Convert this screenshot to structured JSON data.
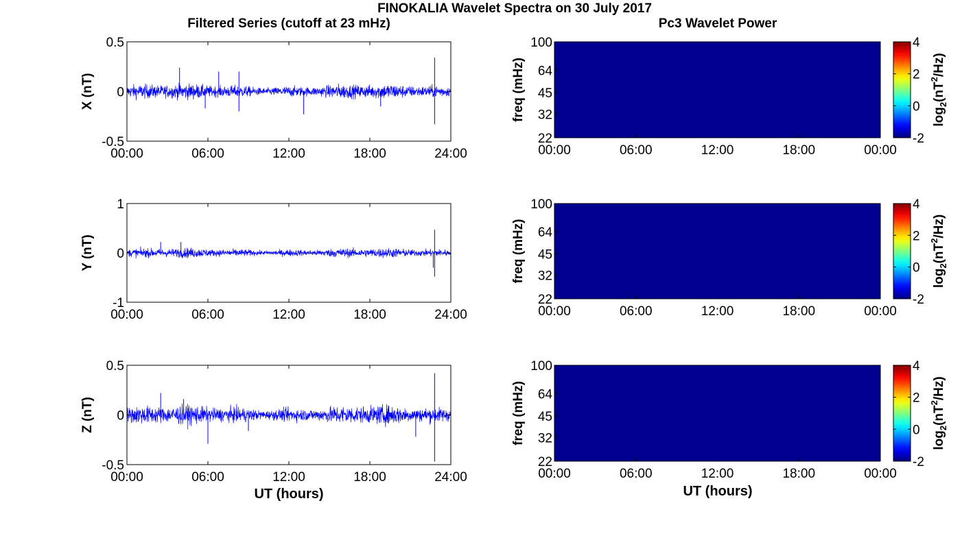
{
  "figure": {
    "title": "FINOKALIA Wavelet Spectra on 30 July 2017",
    "left_title": "Filtered Series (cutoff at 23 mHz)",
    "right_title": "Pc3 Wavelet Power",
    "x_label": "UT (hours)"
  },
  "chart_data": [
    {
      "type": "line",
      "panel": "X",
      "ylabel": "X (nT)",
      "ylim": [
        -0.5,
        0.5
      ],
      "yticks": [
        "0.5",
        "0",
        "-0.5"
      ],
      "xlim": [
        0,
        24
      ],
      "xticks": [
        "00:00",
        "06:00",
        "12:00",
        "18:00",
        "24:00"
      ],
      "series": [
        {
          "color": "#0000ff",
          "baseline_amplitude": 0.055,
          "excursions": [
            {
              "x": 3.9,
              "y": 0.24
            },
            {
              "x": 5.8,
              "y": -0.17
            },
            {
              "x": 6.8,
              "y": 0.2
            },
            {
              "x": 8.3,
              "y": 0.2
            },
            {
              "x": 8.3,
              "y": -0.2
            },
            {
              "x": 13.1,
              "y": -0.23
            },
            {
              "x": 18.8,
              "y": -0.15
            },
            {
              "x": 22.8,
              "y": 0.34
            },
            {
              "x": 22.8,
              "y": -0.33
            }
          ]
        }
      ]
    },
    {
      "type": "line",
      "panel": "Y",
      "ylabel": "Y (nT)",
      "ylim": [
        -1,
        1
      ],
      "yticks": [
        "1",
        "0",
        "-1"
      ],
      "xlim": [
        0,
        24
      ],
      "xticks": [
        "00:00",
        "06:00",
        "12:00",
        "18:00",
        "24:00"
      ],
      "series": [
        {
          "color": "#0000ff",
          "baseline_amplitude": 0.07,
          "excursions": [
            {
              "x": 2.5,
              "y": 0.22
            },
            {
              "x": 4.0,
              "y": 0.22
            },
            {
              "x": 22.8,
              "y": 0.47
            },
            {
              "x": 22.8,
              "y": -0.48
            },
            {
              "x": 22.7,
              "y": -0.3
            }
          ]
        }
      ]
    },
    {
      "type": "line",
      "panel": "Z",
      "ylabel": "Z (nT)",
      "ylim": [
        -0.5,
        0.5
      ],
      "yticks": [
        "0.5",
        "0",
        "-0.5"
      ],
      "xlim": [
        0,
        24
      ],
      "xticks": [
        "00:00",
        "06:00",
        "12:00",
        "18:00",
        "24:00"
      ],
      "series": [
        {
          "color": "#0000ff",
          "baseline_amplitude": 0.07,
          "excursions": [
            {
              "x": 2.5,
              "y": 0.22
            },
            {
              "x": 4.2,
              "y": 0.16
            },
            {
              "x": 6.0,
              "y": -0.29
            },
            {
              "x": 9.0,
              "y": -0.16
            },
            {
              "x": 21.4,
              "y": -0.22
            },
            {
              "x": 22.8,
              "y": 0.42
            },
            {
              "x": 22.8,
              "y": -0.47
            }
          ]
        }
      ]
    },
    {
      "type": "heatmap",
      "panel": "X-power",
      "ylabel": "freq (mHz)",
      "yticks": [
        "100",
        "64",
        "45",
        "32",
        "22"
      ],
      "xticks": [
        "00:00",
        "06:00",
        "12:00",
        "18:00",
        "00:00"
      ],
      "colorbar": {
        "label": "log2(nT²/Hz)",
        "ticks": [
          "4",
          "2",
          "0",
          "-2"
        ],
        "range": [
          -2,
          4
        ]
      },
      "fill_value": -2
    },
    {
      "type": "heatmap",
      "panel": "Y-power",
      "ylabel": "freq (mHz)",
      "yticks": [
        "100",
        "64",
        "45",
        "32",
        "22"
      ],
      "xticks": [
        "00:00",
        "06:00",
        "12:00",
        "18:00",
        "00:00"
      ],
      "colorbar": {
        "label": "log2(nT²/Hz)",
        "ticks": [
          "4",
          "2",
          "0",
          "-2"
        ],
        "range": [
          -2,
          4
        ]
      },
      "fill_value": -2
    },
    {
      "type": "heatmap",
      "panel": "Z-power",
      "ylabel": "freq (mHz)",
      "yticks": [
        "100",
        "64",
        "45",
        "32",
        "22"
      ],
      "xticks": [
        "00:00",
        "06:00",
        "12:00",
        "18:00",
        "00:00"
      ],
      "colorbar": {
        "label": "log2(nT²/Hz)",
        "ticks": [
          "4",
          "2",
          "0",
          "-2"
        ],
        "range": [
          -2,
          4
        ]
      },
      "fill_value": -2
    }
  ],
  "colors": {
    "trace": "#0000ff",
    "heatmap_floor": "#00008f",
    "axis": "#000000"
  },
  "colorbar_label_parts": {
    "base": "log",
    "sub": "2",
    "open": "(nT",
    "sup": "2",
    "close": "/Hz)"
  }
}
